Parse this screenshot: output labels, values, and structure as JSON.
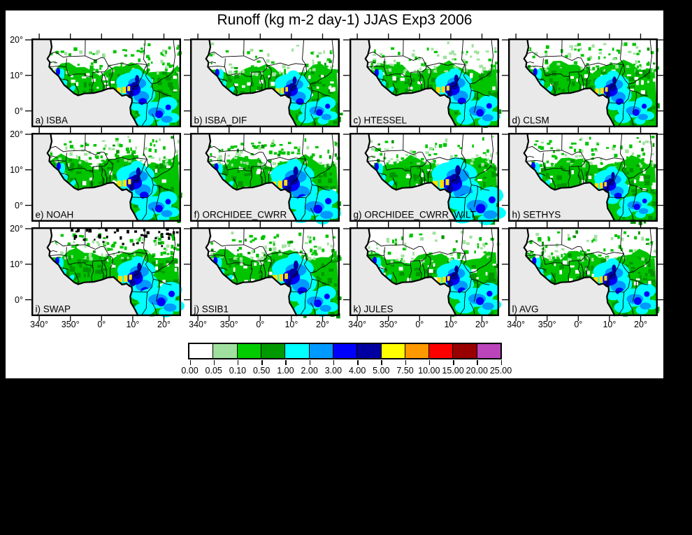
{
  "title": "Runoff (kg m-2 day-1) JJAS Exp3 2006",
  "chart_data": {
    "type": "heatmap",
    "title": "Runoff (kg m-2 day-1) JJAS Exp3 2006",
    "grid": {
      "rows": 3,
      "cols": 4
    },
    "panels": [
      {
        "id": "a",
        "model": "ISBA",
        "label": "a) ISBA"
      },
      {
        "id": "b",
        "model": "ISBA_DIF",
        "label": "b) ISBA_DIF"
      },
      {
        "id": "c",
        "model": "HTESSEL",
        "label": "c) HTESSEL"
      },
      {
        "id": "d",
        "model": "CLSM",
        "label": "d) CLSM"
      },
      {
        "id": "e",
        "model": "NOAH",
        "label": "e) NOAH"
      },
      {
        "id": "f",
        "model": "ORCHIDEE_CWRR",
        "label": "f) ORCHIDEE_CWRR"
      },
      {
        "id": "g",
        "model": "ORCHIDEE_CWRR_WILT",
        "label": "g) ORCHIDEE_CWRR_WILT"
      },
      {
        "id": "h",
        "model": "SETHYS",
        "label": "h) SETHYS"
      },
      {
        "id": "i",
        "model": "SWAP",
        "label": "i) SWAP"
      },
      {
        "id": "j",
        "model": "SSIB1",
        "label": "j) SSIB1"
      },
      {
        "id": "k",
        "model": "JULES",
        "label": "k) JULES"
      },
      {
        "id": "l",
        "model": "AVG",
        "label": "l) AVG"
      }
    ],
    "x_ticks": [
      "340°",
      "350°",
      "0°",
      "10°",
      "20°"
    ],
    "y_ticks": [
      "20°",
      "10°",
      "0°"
    ],
    "colorbar": {
      "boundaries": [
        "0.00",
        "0.05",
        "0.10",
        "0.50",
        "1.00",
        "2.00",
        "3.00",
        "4.00",
        "5.00",
        "7.50",
        "10.00",
        "15.00",
        "20.00",
        "25.00"
      ],
      "colors": [
        "#FFFFFF",
        "#9FE09F",
        "#00CC00",
        "#009900",
        "#00FFFF",
        "#0099FF",
        "#0000FF",
        "#0000A0",
        "#FFFF00",
        "#FF9900",
        "#FF0000",
        "#990000",
        "#BB44BB"
      ]
    },
    "legend_position": "bottom"
  },
  "map_colors": {
    "ocean": "#E9E9E9",
    "land": "#FFFFFF",
    "outline": "#000000",
    "green": "#00C400",
    "dark_green": "#009300",
    "pale_green": "#A2E2A0",
    "cyan": "#00FFFF",
    "sky": "#0099FF",
    "blue": "#0000FF",
    "navy": "#0000A0",
    "yellow": "#FFE000"
  },
  "render": {
    "panel_styles": [
      {
        "density": 0.55,
        "pale": 0.35,
        "holes": 0.5,
        "cluster": 1.0,
        "se": 1.0,
        "black_specks": false
      },
      {
        "density": 0.45,
        "pale": 0.6,
        "holes": 0.6,
        "cluster": 0.95,
        "se": 0.9,
        "black_specks": false
      },
      {
        "density": 0.6,
        "pale": 0.65,
        "holes": 0.45,
        "cluster": 1.0,
        "se": 1.0,
        "black_specks": false
      },
      {
        "density": 0.7,
        "pale": 0.3,
        "holes": 0.55,
        "cluster": 0.95,
        "se": 0.9,
        "black_specks": false
      },
      {
        "density": 0.72,
        "pale": 0.3,
        "holes": 0.35,
        "cluster": 1.05,
        "se": 1.0,
        "black_specks": false
      },
      {
        "density": 0.65,
        "pale": 0.35,
        "holes": 0.4,
        "cluster": 1.2,
        "se": 1.15,
        "black_specks": false
      },
      {
        "density": 0.6,
        "pale": 0.35,
        "holes": 0.45,
        "cluster": 1.25,
        "se": 1.25,
        "black_specks": false
      },
      {
        "density": 0.6,
        "pale": 0.4,
        "holes": 0.5,
        "cluster": 0.9,
        "se": 0.85,
        "black_specks": false
      },
      {
        "density": 0.75,
        "pale": 0.25,
        "holes": 0.3,
        "cluster": 1.05,
        "se": 1.15,
        "black_specks": true
      },
      {
        "density": 0.7,
        "pale": 0.3,
        "holes": 0.35,
        "cluster": 1.15,
        "se": 1.0,
        "black_specks": false
      },
      {
        "density": 0.5,
        "pale": 0.45,
        "holes": 0.6,
        "cluster": 0.95,
        "se": 1.05,
        "black_specks": false
      },
      {
        "density": 0.65,
        "pale": 0.35,
        "holes": 0.4,
        "cluster": 1.0,
        "se": 1.0,
        "black_specks": false
      }
    ]
  }
}
